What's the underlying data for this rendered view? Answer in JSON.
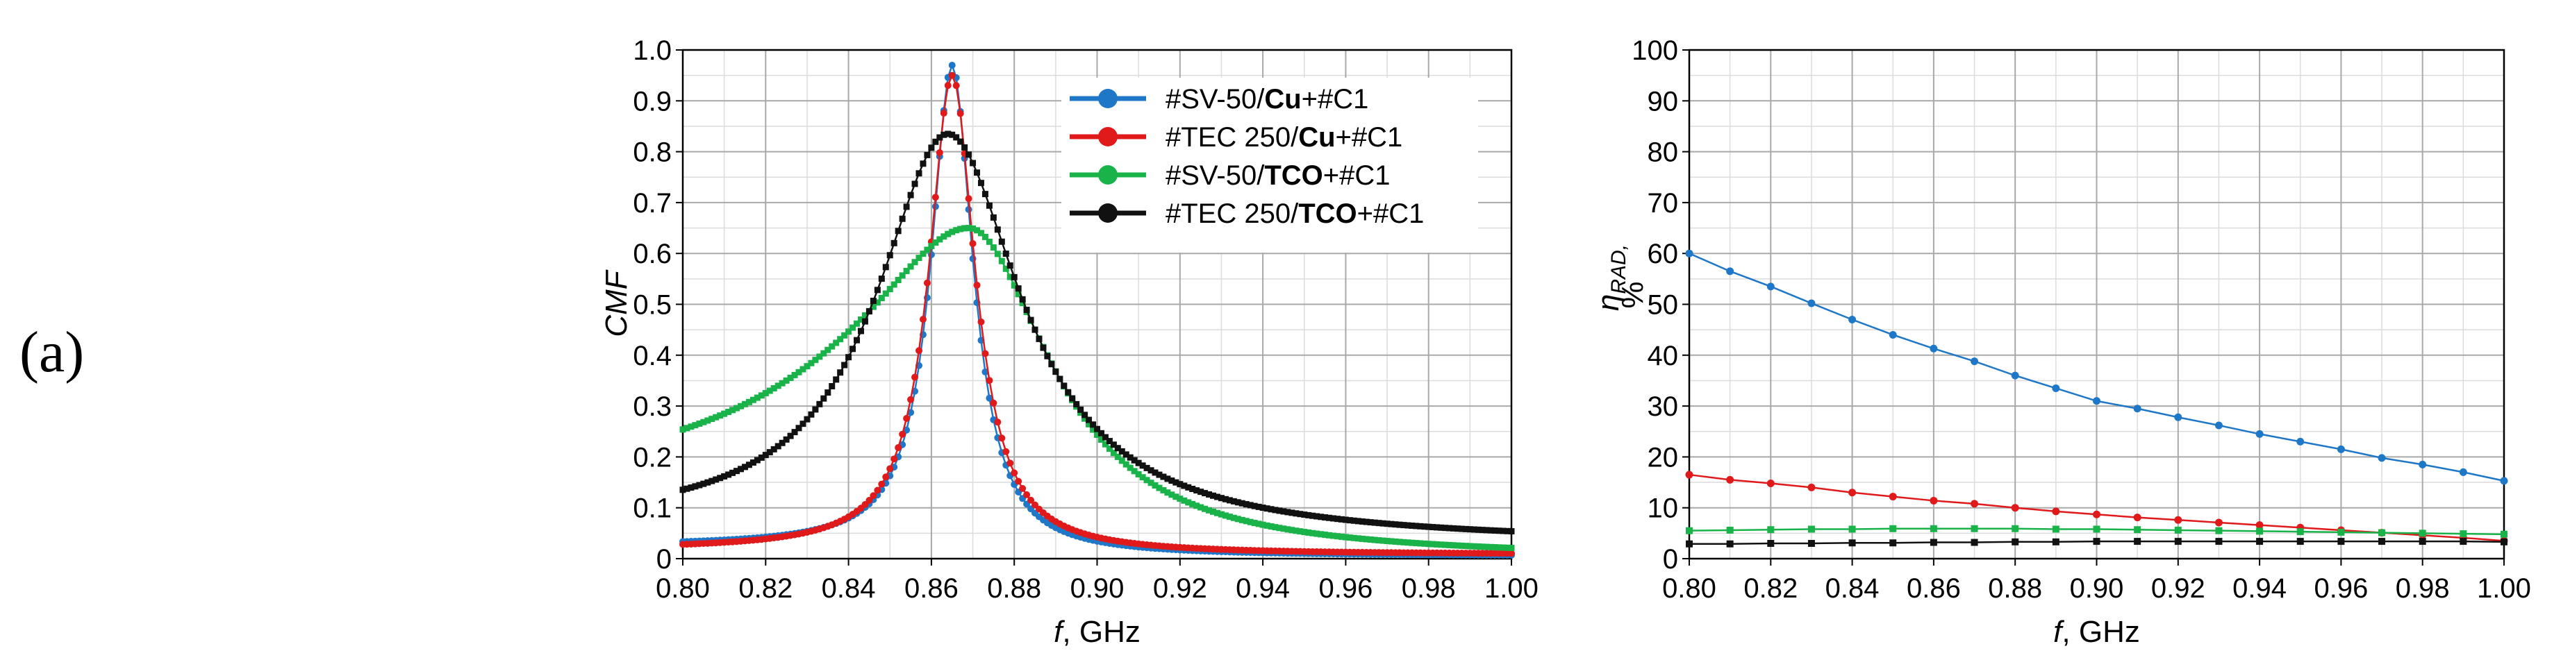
{
  "panel_label": "(a)",
  "chart_data": [
    {
      "type": "line",
      "xlabel": "f, GHz",
      "xlabel_var": "f",
      "xlabel_unit": ", GHz",
      "ylabel": "CMF",
      "xlim": [
        0.8,
        1.0
      ],
      "ylim": [
        0,
        1.0
      ],
      "xticks": [
        "0.80",
        "0.82",
        "0.84",
        "0.86",
        "0.88",
        "0.90",
        "0.92",
        "0.94",
        "0.96",
        "0.98",
        "1.00"
      ],
      "yticks": [
        "0",
        "0.1",
        "0.2",
        "0.3",
        "0.4",
        "0.5",
        "0.6",
        "0.7",
        "0.8",
        "0.9",
        "1.0"
      ],
      "grid": true,
      "legend_position": "top-right",
      "series": [
        {
          "name": "#SV-50/Cu+#C1",
          "parts": [
            [
              "#SV-50/",
              false
            ],
            [
              "Cu",
              true
            ],
            [
              "+#C1",
              false
            ]
          ],
          "color": "#1f77c8",
          "model": "lorentz",
          "peak": 0.97,
          "center": 0.865,
          "width": 0.0062,
          "base_left": 0.025,
          "base_right": 0.005,
          "baseline_slope": 0.0
        },
        {
          "name": "#TEC 250/Cu+#C1",
          "parts": [
            [
              "#TEC 250/",
              false
            ],
            [
              "Cu",
              true
            ],
            [
              "+#C1",
              false
            ]
          ],
          "color": "#e0191b",
          "model": "lorentz",
          "peak": 0.95,
          "center": 0.865,
          "width": 0.0068,
          "base_left": 0.018,
          "base_right": 0.008,
          "baseline_slope": 0.0
        },
        {
          "name": "#SV-50/TCO+#C1",
          "parts": [
            [
              "#SV-50/",
              false
            ],
            [
              "TCO",
              true
            ],
            [
              "+#C1",
              false
            ]
          ],
          "color": "#19b34a",
          "model": "lorentz",
          "peak": 0.65,
          "center": 0.869,
          "width": 0.024,
          "base_left": 0.14,
          "base_right": 0.0,
          "baseline_slope": 0.0
        },
        {
          "name": "#TEC 250/TCO+#C1",
          "parts": [
            [
              "#TEC 250/",
              false
            ],
            [
              "TCO",
              true
            ],
            [
              "+#C1",
              false
            ]
          ],
          "color": "#111111",
          "model": "lorentz",
          "peak": 0.835,
          "center": 0.864,
          "width": 0.021,
          "base_left": 0.03,
          "base_right": 0.03,
          "baseline_slope": 0.0
        }
      ]
    },
    {
      "type": "line",
      "xlabel": "f, GHz",
      "xlabel_var": "f",
      "xlabel_unit": ", GHz",
      "ylabel": "ηRAD, %",
      "ylabel_sym": "η",
      "ylabel_sub": "RAD,",
      "ylabel_unit": "%",
      "xlim": [
        0.8,
        1.0
      ],
      "ylim": [
        0,
        100
      ],
      "xticks": [
        "0.80",
        "0.82",
        "0.84",
        "0.86",
        "0.88",
        "0.90",
        "0.92",
        "0.94",
        "0.96",
        "0.98",
        "1.00"
      ],
      "yticks": [
        "0",
        "10",
        "20",
        "30",
        "40",
        "50",
        "60",
        "70",
        "80",
        "90",
        "100"
      ],
      "grid": true,
      "series": [
        {
          "name": "#SV-50/Cu+#C1",
          "color": "#1f77c8",
          "x": [
            0.8,
            0.81,
            0.82,
            0.83,
            0.84,
            0.85,
            0.86,
            0.87,
            0.88,
            0.89,
            0.9,
            0.91,
            0.92,
            0.93,
            0.94,
            0.95,
            0.96,
            0.97,
            0.98,
            0.99,
            1.0
          ],
          "y": [
            60,
            56.5,
            53.5,
            50.2,
            47,
            44,
            41.3,
            38.8,
            36,
            33.5,
            31,
            29.5,
            27.8,
            26.2,
            24.5,
            23,
            21.5,
            19.8,
            18.5,
            17,
            15.3
          ]
        },
        {
          "name": "#TEC 250/Cu+#C1",
          "color": "#e0191b",
          "x": [
            0.8,
            0.81,
            0.82,
            0.83,
            0.84,
            0.85,
            0.86,
            0.87,
            0.88,
            0.89,
            0.9,
            0.91,
            0.92,
            0.93,
            0.94,
            0.95,
            0.96,
            0.97,
            0.98,
            0.99,
            1.0
          ],
          "y": [
            16.5,
            15.5,
            14.8,
            14,
            13,
            12.2,
            11.4,
            10.8,
            10,
            9.3,
            8.7,
            8.1,
            7.6,
            7.1,
            6.6,
            6.1,
            5.6,
            5.1,
            4.6,
            4.1,
            3.5
          ]
        },
        {
          "name": "#SV-50/TCO+#C1",
          "color": "#19b34a",
          "x": [
            0.8,
            0.81,
            0.82,
            0.83,
            0.84,
            0.85,
            0.86,
            0.87,
            0.88,
            0.89,
            0.9,
            0.91,
            0.92,
            0.93,
            0.94,
            0.95,
            0.96,
            0.97,
            0.98,
            0.99,
            1.0
          ],
          "y": [
            5.5,
            5.6,
            5.7,
            5.8,
            5.8,
            5.9,
            5.9,
            5.9,
            5.9,
            5.8,
            5.8,
            5.7,
            5.6,
            5.5,
            5.4,
            5.3,
            5.2,
            5.1,
            5,
            4.9,
            4.8
          ]
        },
        {
          "name": "#TEC 250/TCO+#C1",
          "color": "#111111",
          "x": [
            0.8,
            0.81,
            0.82,
            0.83,
            0.84,
            0.85,
            0.86,
            0.87,
            0.88,
            0.89,
            0.9,
            0.91,
            0.92,
            0.93,
            0.94,
            0.95,
            0.96,
            0.97,
            0.98,
            0.99,
            1.0
          ],
          "y": [
            2.9,
            2.9,
            3.0,
            3.0,
            3.1,
            3.1,
            3.2,
            3.2,
            3.3,
            3.3,
            3.4,
            3.4,
            3.4,
            3.4,
            3.4,
            3.4,
            3.4,
            3.4,
            3.4,
            3.4,
            3.3
          ]
        }
      ]
    }
  ]
}
